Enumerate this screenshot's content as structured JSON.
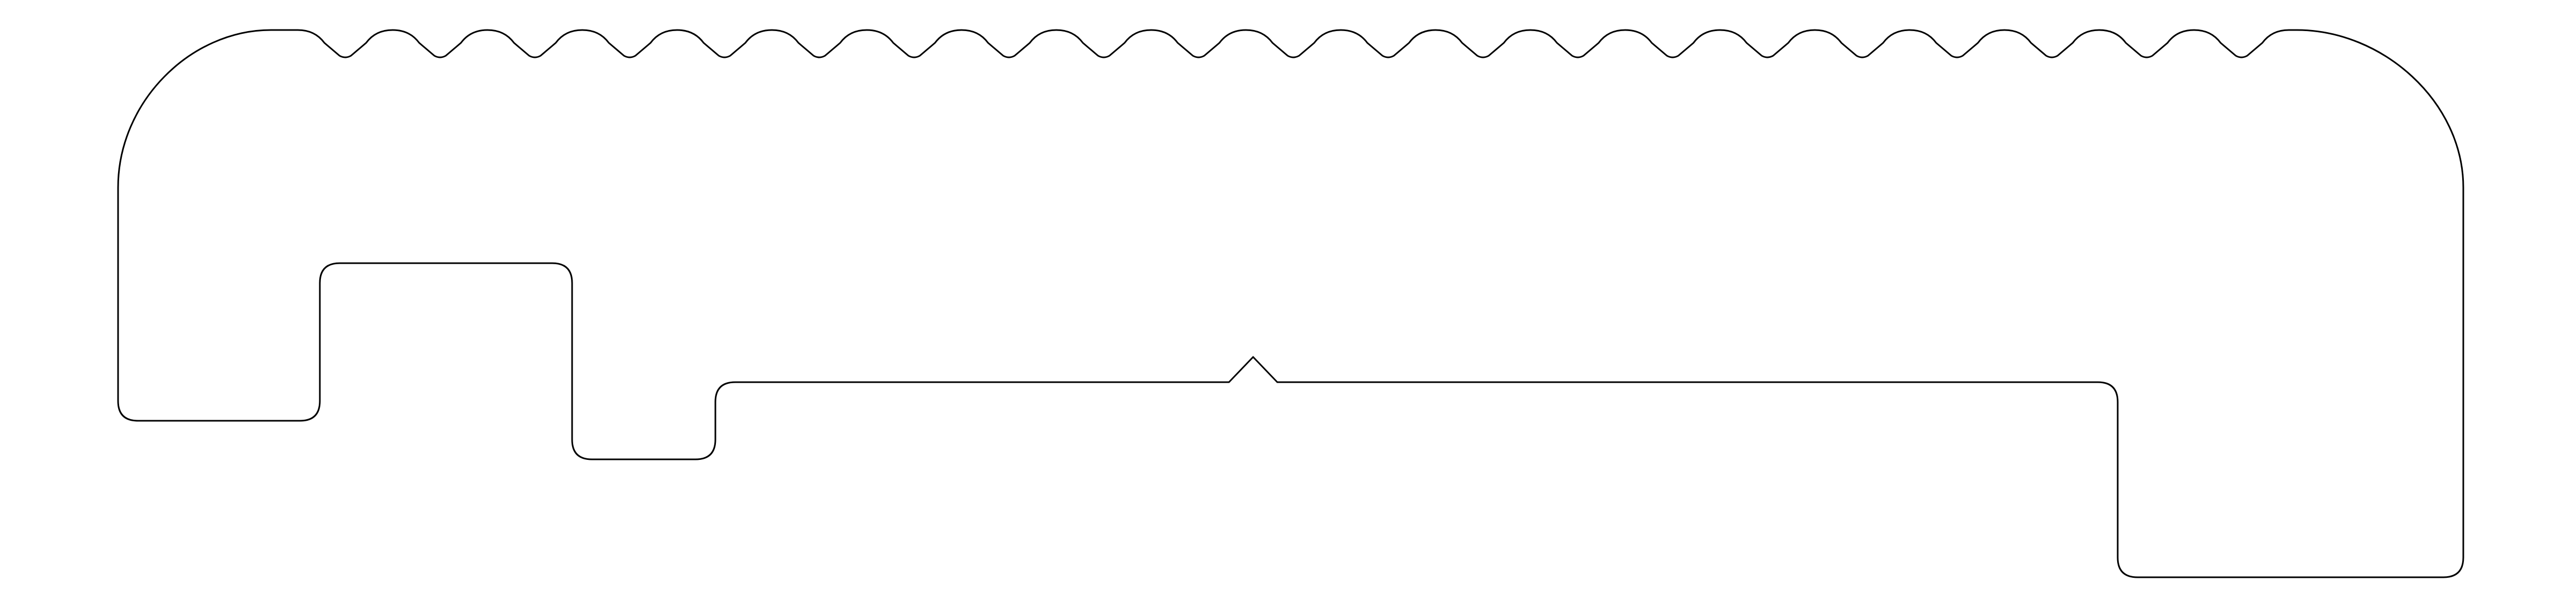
{
  "diagram": {
    "type": "cross-section-profile",
    "background_color": "#ffffff",
    "stroke_color": "#000000",
    "fill": "none",
    "top_grooves": {
      "count": 21
    },
    "bottom_edge": {
      "v_notch_count": 1
    },
    "underside_recesses": {
      "count": 2
    },
    "rounded_top_corners": 2
  }
}
